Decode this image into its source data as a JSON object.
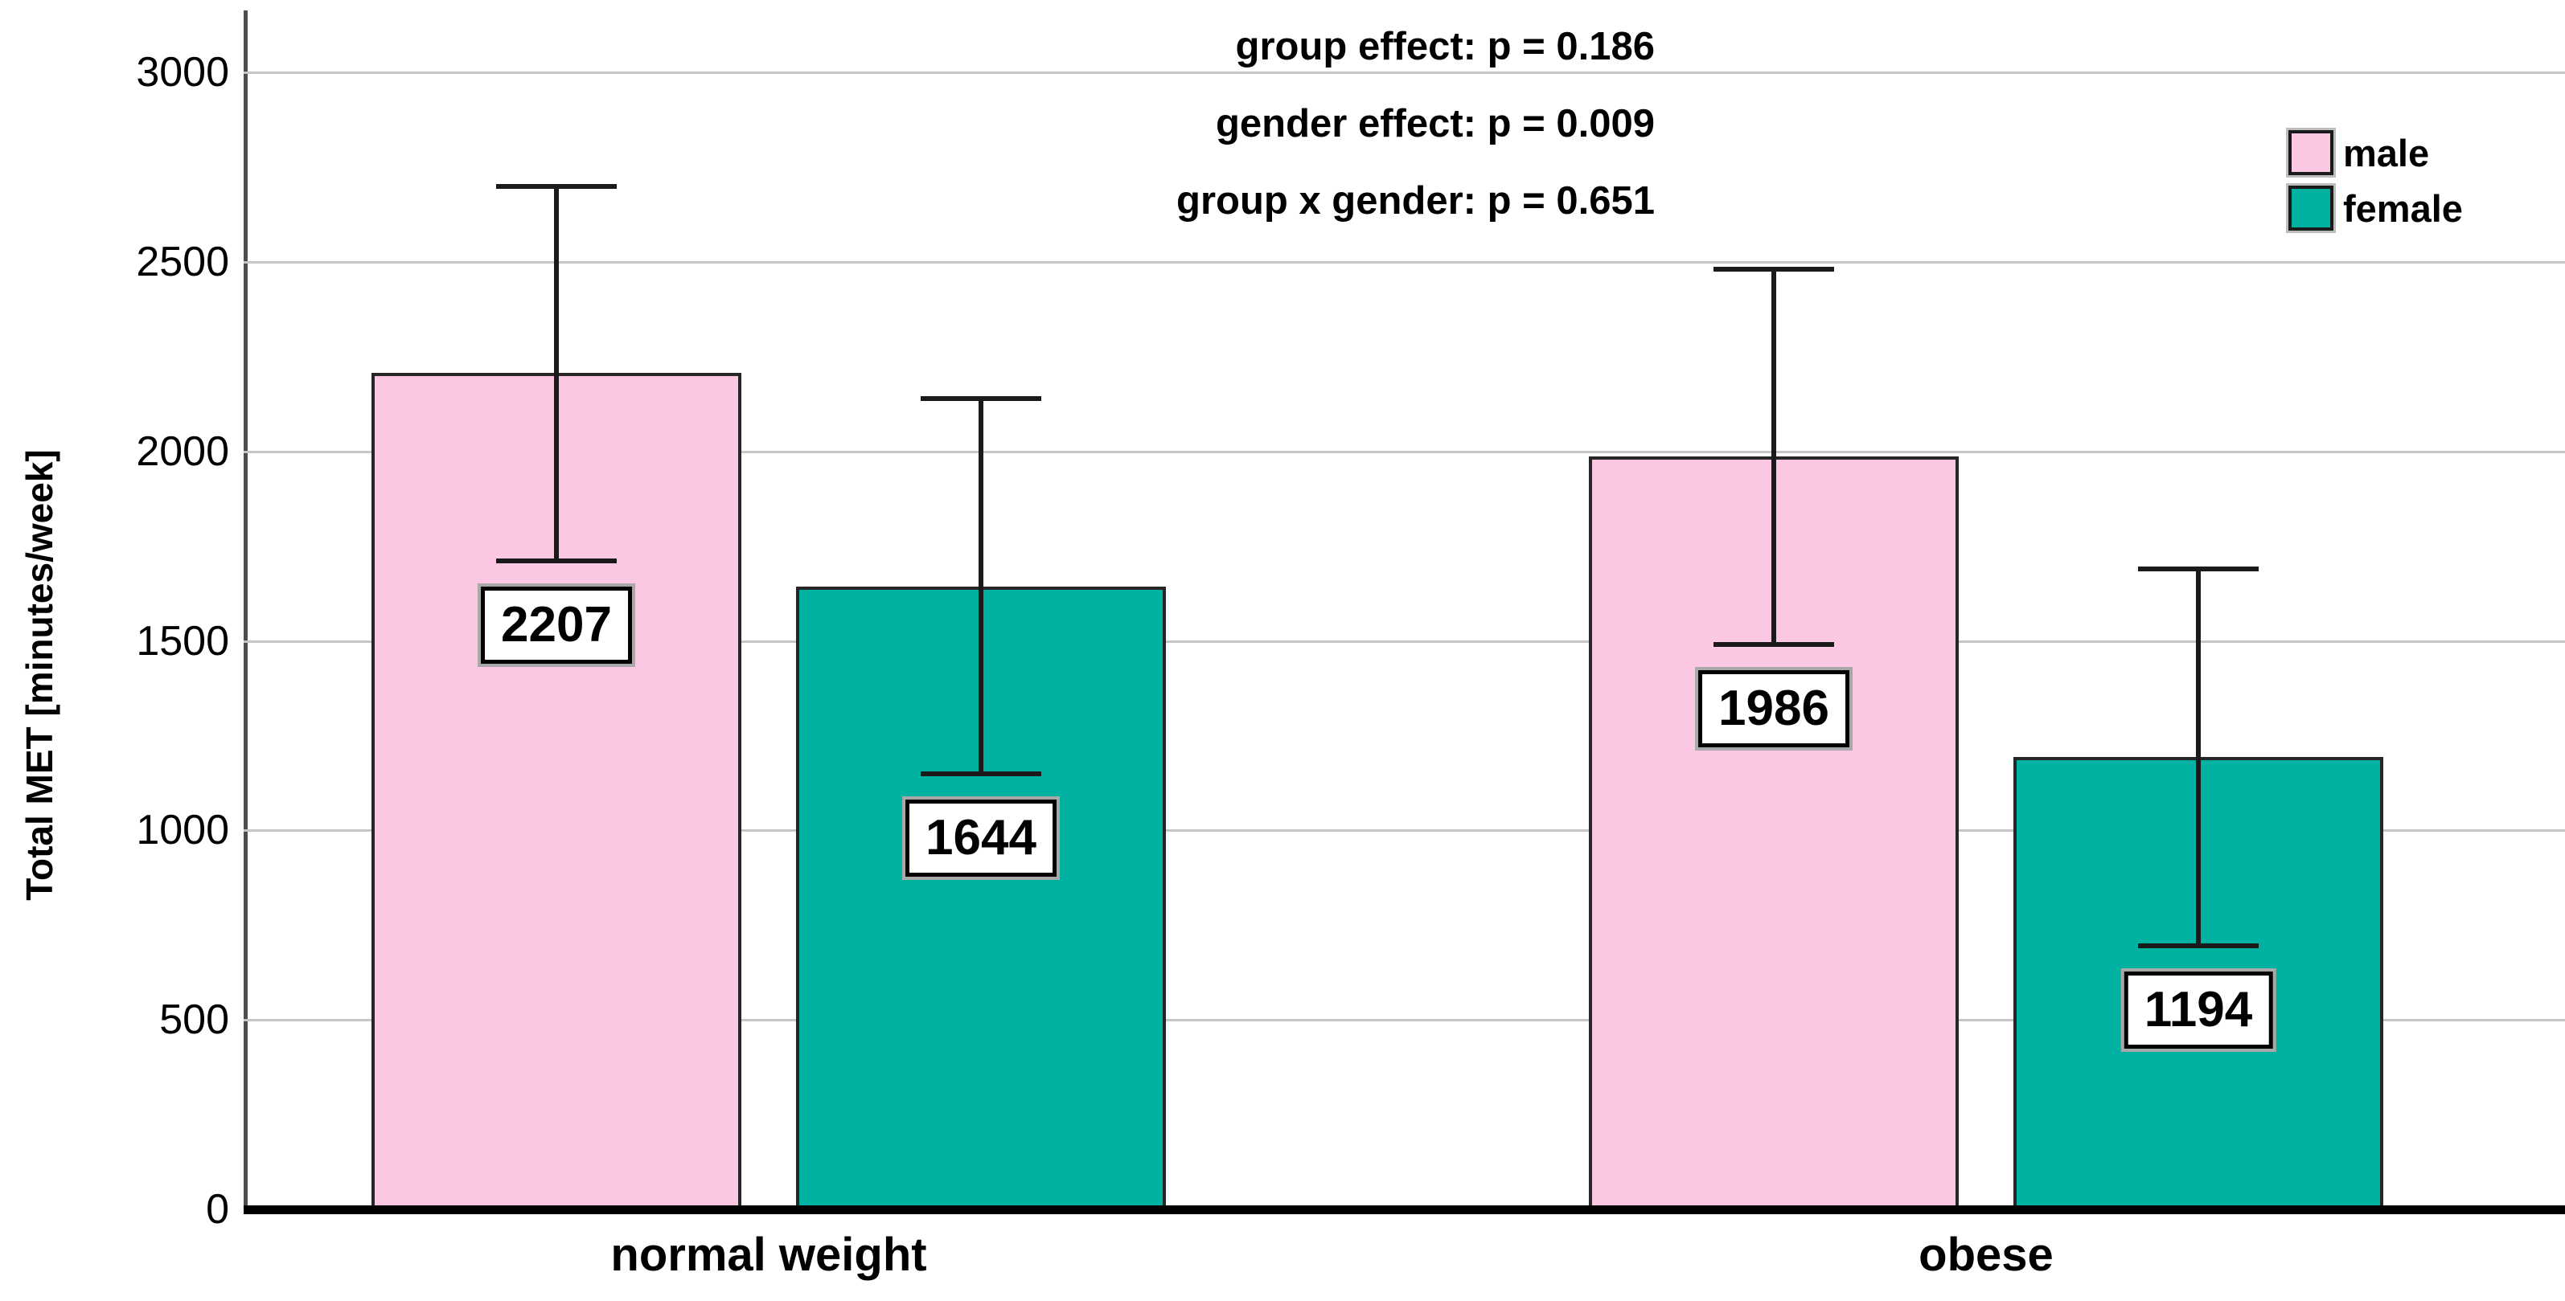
{
  "chart_data": {
    "type": "bar",
    "title": "",
    "xlabel": "",
    "ylabel": "Total MET [minutes/week]",
    "categories": [
      "normal weight",
      "obese"
    ],
    "series": [
      {
        "name": "male",
        "color": "#FBC7E3",
        "values": [
          2207,
          1986
        ],
        "error_high": [
          2700,
          2480
        ],
        "error_low": [
          1710,
          1490
        ]
      },
      {
        "name": "female",
        "color": "#00B2A1",
        "values": [
          1644,
          1194
        ],
        "error_high": [
          2140,
          1690
        ],
        "error_low": [
          1150,
          695
        ]
      }
    ],
    "bar_value_labels": [
      "2207",
      "1644",
      "1986",
      "1194"
    ],
    "yticks": [
      0,
      500,
      1000,
      1500,
      2000,
      2500,
      3000
    ],
    "ylim": [
      0,
      3160
    ],
    "grid": true,
    "legend_position": "top-right",
    "annotations": [
      "group effect: p = 0.186",
      "gender effect: p = 0.009",
      "group x gender: p = 0.651"
    ]
  },
  "colors": {
    "male_fill": "#FBC7E3",
    "female_fill": "#00B2A1",
    "gridline": "#c6c6c6",
    "axis_spine": "#4d4d4d",
    "baseline": "#000000",
    "error_bar": "#1a1a1a",
    "text": "#000000",
    "background": "#ffffff"
  }
}
